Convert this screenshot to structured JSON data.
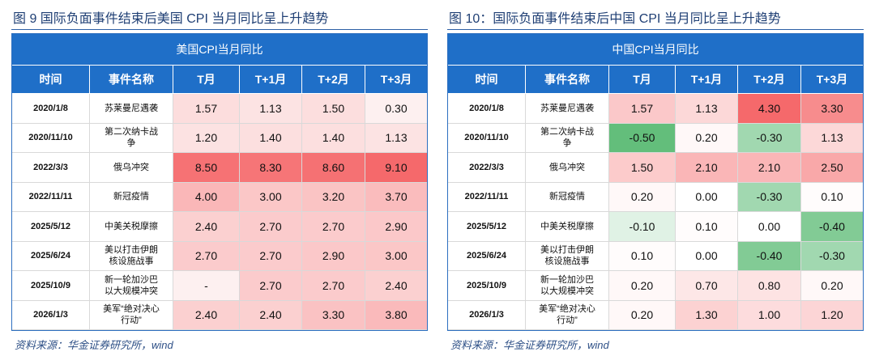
{
  "tables": [
    {
      "caption": "图 9 国际负面事件结束后美国 CPI 当月同比呈上升趋势",
      "header_title": "美国CPI当月同比",
      "columns": [
        "时间",
        "事件名称",
        "T月",
        "T+1月",
        "T+2月",
        "T+3月"
      ],
      "rows": [
        [
          "2020/1/8",
          "苏莱曼尼遇袭",
          "1.57",
          "1.13",
          "1.50",
          "0.30"
        ],
        [
          "2020/11/10",
          "第二次纳卡战争",
          "1.20",
          "1.40",
          "1.40",
          "1.13"
        ],
        [
          "2022/3/3",
          "俄乌冲突",
          "8.50",
          "8.30",
          "8.60",
          "9.10"
        ],
        [
          "2022/11/11",
          "新冠疫情",
          "4.00",
          "3.00",
          "3.20",
          "3.70"
        ],
        [
          "2025/5/12",
          "中美关税摩擦",
          "2.40",
          "2.70",
          "2.70",
          "2.90"
        ],
        [
          "2025/6/24",
          "美以打击伊朗核设施战事",
          "2.70",
          "2.70",
          "2.90",
          "3.00"
        ],
        [
          "2025/10/9",
          "新一轮加沙巴以大规模冲突",
          "-",
          "2.70",
          "2.70",
          "2.40"
        ],
        [
          "2026/1/3",
          "美军“绝对决心行动”",
          "2.40",
          "2.40",
          "3.30",
          "3.80"
        ]
      ],
      "source": "资料来源：华金证券研究所，wind"
    },
    {
      "caption": "图 10：国际负面事件结束后中国 CPI 当月同比呈上升趋势",
      "header_title": "中国CPI当月同比",
      "columns": [
        "时间",
        "事件名称",
        "T月",
        "T+1月",
        "T+2月",
        "T+3月"
      ],
      "rows": [
        [
          "2020/1/8",
          "苏莱曼尼遇袭",
          "1.57",
          "1.13",
          "4.30",
          "3.30"
        ],
        [
          "2020/11/10",
          "第二次纳卡战争",
          "-0.50",
          "0.20",
          "-0.30",
          "1.13"
        ],
        [
          "2022/3/3",
          "俄乌冲突",
          "1.50",
          "2.10",
          "2.10",
          "2.50"
        ],
        [
          "2022/11/11",
          "新冠疫情",
          "0.20",
          "0.00",
          "-0.30",
          "0.10"
        ],
        [
          "2025/5/12",
          "中美关税摩擦",
          "-0.10",
          "0.10",
          "0.00",
          "-0.40"
        ],
        [
          "2025/6/24",
          "美以打击伊朗核设施战事",
          "0.10",
          "0.00",
          "-0.40",
          "-0.30"
        ],
        [
          "2025/10/9",
          "新一轮加沙巴以大规模冲突",
          "0.20",
          "0.70",
          "0.80",
          "0.20"
        ],
        [
          "2026/1/3",
          "美军“绝对决心行动”",
          "0.20",
          "1.30",
          "1.00",
          "1.20"
        ]
      ],
      "source": "资料来源：华金证券研究所，wind"
    }
  ]
}
